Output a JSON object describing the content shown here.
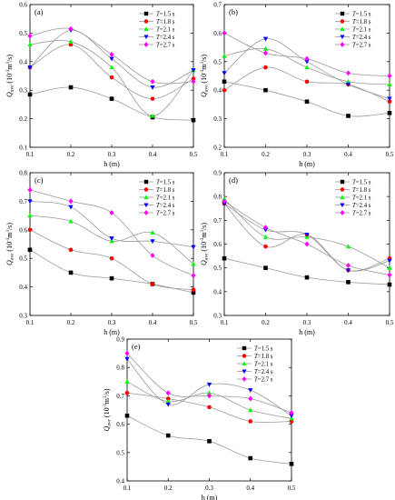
{
  "figure": {
    "series_style": [
      {
        "color": "#000000",
        "marker": "square"
      },
      {
        "color": "#ff0000",
        "marker": "circle"
      },
      {
        "color": "#00ff00",
        "marker": "triangle-up"
      },
      {
        "color": "#0000ff",
        "marker": "triangle-down"
      },
      {
        "color": "#ff00ff",
        "marker": "diamond"
      }
    ],
    "curve_color": "#9a9a9a"
  },
  "chart_data": [
    {
      "type": "line",
      "title": "(a)",
      "xlabel": "h (m)",
      "ylabel": "Q_ave (10^-3 m^3/s)",
      "ylabel_main": "Q",
      "ylabel_sub": "ave",
      "ylabel_unit": "(10",
      "ylabel_exp1": "-3",
      "ylabel_unit2": "m",
      "ylabel_exp2": "3",
      "ylabel_unit3": "/s)",
      "xlim": [
        0.1,
        0.5
      ],
      "ylim": [
        0.1,
        0.6
      ],
      "xticks": [
        "0.1",
        "0.2",
        "0.3",
        "0.4",
        "0.5"
      ],
      "yticks": [
        "0.1",
        "0.2",
        "0.3",
        "0.4",
        "0.5",
        "0.6"
      ],
      "x": [
        0.1,
        0.2,
        0.3,
        0.4,
        0.5
      ],
      "series": [
        {
          "name": "T=1.5 s",
          "label_var": "T",
          "label_rest": "=1.5 s",
          "values": [
            0.285,
            0.31,
            0.27,
            0.205,
            0.195
          ]
        },
        {
          "name": "T=1.8 s",
          "label_var": "T",
          "label_rest": "=1.8 s",
          "values": [
            0.38,
            0.46,
            0.345,
            0.27,
            0.34
          ]
        },
        {
          "name": "T=2.1 s",
          "label_var": "T",
          "label_rest": "=2.1 s",
          "values": [
            0.46,
            0.47,
            0.38,
            0.21,
            0.37
          ]
        },
        {
          "name": "T=2.4 s",
          "label_var": "T",
          "label_rest": "=2.4 s",
          "values": [
            0.38,
            0.51,
            0.41,
            0.31,
            0.37
          ]
        },
        {
          "name": "T=2.7 s",
          "label_var": "T",
          "label_rest": "=2.7 s",
          "values": [
            0.49,
            0.515,
            0.425,
            0.33,
            0.33
          ]
        }
      ],
      "legend": "top-right"
    },
    {
      "type": "line",
      "title": "(b)",
      "xlabel": "h (m)",
      "ylabel": "Q_ave (10^-3 m^3/s)",
      "ylabel_main": "Q",
      "ylabel_sub": "ave",
      "ylabel_unit": "(10",
      "ylabel_exp1": "-3",
      "ylabel_unit2": "m",
      "ylabel_exp2": "3",
      "ylabel_unit3": "/s)",
      "xlim": [
        0.1,
        0.5
      ],
      "ylim": [
        0.2,
        0.7
      ],
      "xticks": [
        "0.1",
        "0.2",
        "0.3",
        "0.4",
        "0.5"
      ],
      "yticks": [
        "0.2",
        "0.3",
        "0.4",
        "0.5",
        "0.6",
        "0.7"
      ],
      "x": [
        0.1,
        0.2,
        0.3,
        0.4,
        0.5
      ],
      "series": [
        {
          "name": "T=1.5 s",
          "label_var": "T",
          "label_rest": "=1.5 s",
          "values": [
            0.43,
            0.4,
            0.36,
            0.31,
            0.32
          ]
        },
        {
          "name": "T=1.8 s",
          "label_var": "T",
          "label_rest": "=1.8 s",
          "values": [
            0.4,
            0.48,
            0.43,
            0.42,
            0.36
          ]
        },
        {
          "name": "T=2.1 s",
          "label_var": "T",
          "label_rest": "=2.1 s",
          "values": [
            0.52,
            0.545,
            0.48,
            0.43,
            0.42
          ]
        },
        {
          "name": "T=2.4 s",
          "label_var": "T",
          "label_rest": "=2.4 s",
          "values": [
            0.46,
            0.58,
            0.5,
            0.42,
            0.37
          ]
        },
        {
          "name": "T=2.7 s",
          "label_var": "T",
          "label_rest": "=2.7 s",
          "values": [
            0.6,
            0.53,
            0.51,
            0.46,
            0.45
          ]
        }
      ],
      "legend": "top-right"
    },
    {
      "type": "line",
      "title": "(c)",
      "xlabel": "h (m)",
      "ylabel": "Q_ave (10^-3 m^3/s)",
      "ylabel_main": "Q",
      "ylabel_sub": "ave",
      "ylabel_unit": "(10",
      "ylabel_exp1": "-3",
      "ylabel_unit2": "m",
      "ylabel_exp2": "3",
      "ylabel_unit3": "/s)",
      "xlim": [
        0.1,
        0.5
      ],
      "ylim": [
        0.3,
        0.8
      ],
      "xticks": [
        "0.1",
        "0.2",
        "0.3",
        "0.4",
        "0.5"
      ],
      "yticks": [
        "0.3",
        "0.4",
        "0.5",
        "0.6",
        "0.7",
        "0.8"
      ],
      "x": [
        0.1,
        0.2,
        0.3,
        0.4,
        0.5
      ],
      "series": [
        {
          "name": "T=1.5 s",
          "label_var": "T",
          "label_rest": "=1.5 s",
          "values": [
            0.53,
            0.45,
            0.43,
            0.41,
            0.38
          ]
        },
        {
          "name": "T=1.8 s",
          "label_var": "T",
          "label_rest": "=1.8 s",
          "values": [
            0.6,
            0.53,
            0.5,
            0.41,
            0.39
          ]
        },
        {
          "name": "T=2.1 s",
          "label_var": "T",
          "label_rest": "=2.1 s",
          "values": [
            0.65,
            0.63,
            0.56,
            0.59,
            0.48
          ]
        },
        {
          "name": "T=2.4 s",
          "label_var": "T",
          "label_rest": "=2.4 s",
          "values": [
            0.7,
            0.68,
            0.57,
            0.56,
            0.54
          ]
        },
        {
          "name": "T=2.7 s",
          "label_var": "T",
          "label_rest": "=2.7 s",
          "values": [
            0.74,
            0.7,
            0.66,
            0.51,
            0.44
          ]
        }
      ],
      "legend": "top-right"
    },
    {
      "type": "line",
      "title": "(d)",
      "xlabel": "h (m)",
      "ylabel": "Q_ave (10^-3 m^3/s)",
      "ylabel_main": "Q",
      "ylabel_sub": "ave",
      "ylabel_unit": "(10",
      "ylabel_exp1": "-3",
      "ylabel_unit2": "m",
      "ylabel_exp2": "3",
      "ylabel_unit3": "/s)",
      "xlim": [
        0.1,
        0.5
      ],
      "ylim": [
        0.3,
        0.9
      ],
      "xticks": [
        "0.1",
        "0.2",
        "0.3",
        "0.4",
        "0.5"
      ],
      "yticks": [
        "0.3",
        "0.4",
        "0.5",
        "0.6",
        "0.7",
        "0.8",
        "0.9"
      ],
      "x": [
        0.1,
        0.2,
        0.3,
        0.4,
        0.5
      ],
      "series": [
        {
          "name": "T=1.5 s",
          "label_var": "T",
          "label_rest": "=1.5 s",
          "values": [
            0.54,
            0.5,
            0.46,
            0.44,
            0.43
          ]
        },
        {
          "name": "T=1.8 s",
          "label_var": "T",
          "label_rest": "=1.8 s",
          "values": [
            0.77,
            0.59,
            0.64,
            0.49,
            0.54
          ]
        },
        {
          "name": "T=2.1 s",
          "label_var": "T",
          "label_rest": "=2.1 s",
          "values": [
            0.79,
            0.63,
            0.63,
            0.59,
            0.5
          ]
        },
        {
          "name": "T=2.4 s",
          "label_var": "T",
          "label_rest": "=2.4 s",
          "values": [
            0.77,
            0.66,
            0.64,
            0.49,
            0.53
          ]
        },
        {
          "name": "T=2.7 s",
          "label_var": "T",
          "label_rest": "=2.7 s",
          "values": [
            0.78,
            0.67,
            0.6,
            0.51,
            0.47
          ]
        }
      ],
      "legend": "top-right"
    },
    {
      "type": "line",
      "title": "(e)",
      "xlabel": "h (m)",
      "ylabel": "Q_ave (10^-3 m^3/s)",
      "ylabel_main": "Q",
      "ylabel_sub": "ave",
      "ylabel_unit": "(10",
      "ylabel_exp1": "-3",
      "ylabel_unit2": "m",
      "ylabel_exp2": "3",
      "ylabel_unit3": "/s)",
      "xlim": [
        0.1,
        0.5
      ],
      "ylim": [
        0.4,
        0.9
      ],
      "xticks": [
        "0.1",
        "0.2",
        "0.3",
        "0.4",
        "0.5"
      ],
      "yticks": [
        "0.4",
        "0.5",
        "0.6",
        "0.7",
        "0.8",
        "0.9"
      ],
      "x": [
        0.1,
        0.2,
        0.3,
        0.4,
        0.5
      ],
      "series": [
        {
          "name": "T=1.5 s",
          "label_var": "T",
          "label_rest": "=1.5 s",
          "values": [
            0.63,
            0.56,
            0.54,
            0.48,
            0.46
          ]
        },
        {
          "name": "T=1.8 s",
          "label_var": "T",
          "label_rest": "=1.8 s",
          "values": [
            0.71,
            0.69,
            0.66,
            0.61,
            0.61
          ]
        },
        {
          "name": "T=2.1 s",
          "label_var": "T",
          "label_rest": "=2.1 s",
          "values": [
            0.75,
            0.68,
            0.71,
            0.65,
            0.62
          ]
        },
        {
          "name": "T=2.4 s",
          "label_var": "T",
          "label_rest": "=2.4 s",
          "values": [
            0.83,
            0.67,
            0.74,
            0.72,
            0.63
          ]
        },
        {
          "name": "T=2.7 s",
          "label_var": "T",
          "label_rest": "=2.7 s",
          "values": [
            0.85,
            0.71,
            0.7,
            0.69,
            0.64
          ]
        }
      ],
      "legend": "top-right"
    }
  ]
}
